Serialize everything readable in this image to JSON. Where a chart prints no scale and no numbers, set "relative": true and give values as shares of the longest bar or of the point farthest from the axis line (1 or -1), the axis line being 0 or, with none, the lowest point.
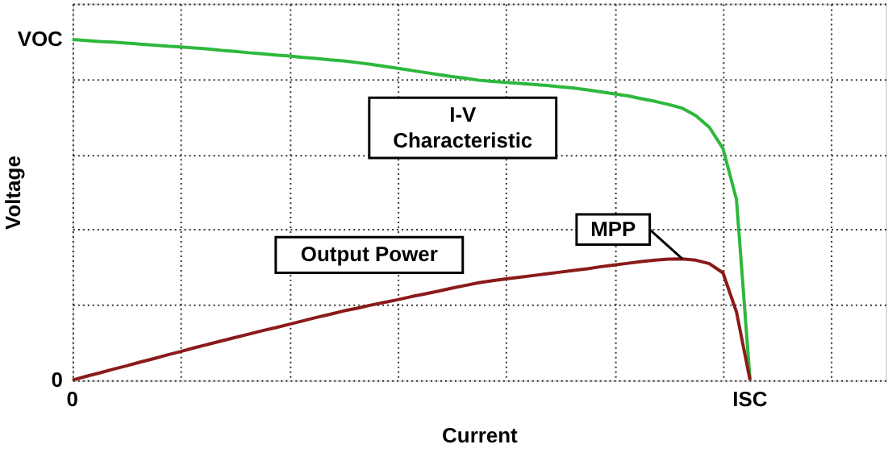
{
  "chart_data": {
    "type": "line",
    "xlabel": "Current",
    "ylabel": "Voltage",
    "relative": true,
    "grid": true,
    "legend": false,
    "marker": "none",
    "line_style": "solid",
    "categories": [
      null,
      null,
      null,
      null,
      null,
      null,
      null,
      null,
      null,
      null,
      null,
      null,
      null,
      null,
      null,
      null,
      null,
      null,
      null,
      null,
      null,
      null,
      null,
      null,
      null,
      null,
      null,
      null,
      null,
      null,
      null,
      null,
      null,
      null,
      null,
      null,
      null,
      null,
      null,
      null,
      null,
      null,
      null,
      null,
      null,
      null,
      null,
      null,
      null,
      null,
      null,
      null,
      null,
      null,
      null,
      null,
      null,
      null,
      null,
      null,
      null
    ],
    "series": [
      {
        "name": "I-V Characteristic",
        "color": "#2db83d",
        "values": [
          1,
          0.997,
          0.994,
          0.992,
          0.989,
          0.986,
          0.983,
          0.98,
          0.978,
          0.975,
          0.972,
          0.968,
          0.965,
          0.961,
          0.958,
          0.954,
          0.951,
          0.947,
          0.944,
          0.94,
          0.937,
          0.932,
          0.927,
          0.921,
          0.915,
          0.909,
          0.903,
          0.897,
          0.891,
          0.886,
          0.88,
          0.877,
          0.874,
          0.871,
          0.868,
          0.865,
          0.861,
          0.857,
          0.852,
          0.846,
          0.84,
          0.834,
          0.826,
          0.818,
          0.809,
          0.798,
          0.776,
          0.742,
          0.68,
          0.53,
          0,
          null,
          null,
          null,
          null,
          null,
          null,
          null,
          null,
          null,
          null
        ]
      },
      {
        "name": "Output Power",
        "color": "#8b1a1a",
        "values": [
          0,
          0.011,
          0.021,
          0.032,
          0.042,
          0.053,
          0.063,
          0.074,
          0.084,
          0.095,
          0.105,
          0.115,
          0.125,
          0.135,
          0.145,
          0.154,
          0.164,
          0.174,
          0.184,
          0.193,
          0.203,
          0.211,
          0.22,
          0.228,
          0.236,
          0.245,
          0.253,
          0.261,
          0.27,
          0.278,
          0.286,
          0.292,
          0.297,
          0.302,
          0.307,
          0.312,
          0.317,
          0.322,
          0.327,
          0.333,
          0.338,
          0.343,
          0.348,
          0.352,
          0.355,
          0.356,
          0.352,
          0.342,
          0.315,
          0.2,
          0,
          null,
          null,
          null,
          null,
          null,
          null,
          null,
          null,
          null,
          null
        ]
      }
    ],
    "annotations": [
      "0",
      "VOC",
      "0",
      "ISC",
      "MPP"
    ]
  }
}
